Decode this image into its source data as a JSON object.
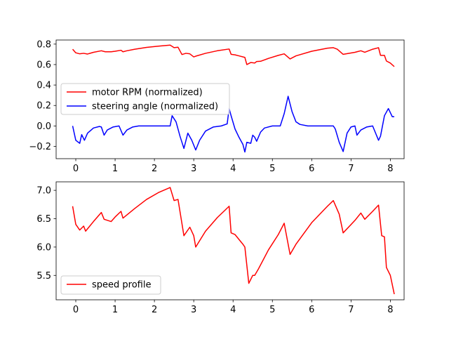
{
  "chart_data": [
    {
      "type": "line",
      "title": "",
      "xlabel": "",
      "ylabel": "",
      "xlim": [
        -0.5,
        8.35
      ],
      "ylim": [
        -0.32,
        0.84
      ],
      "xticks": [
        0,
        1,
        2,
        3,
        4,
        5,
        6,
        7,
        8
      ],
      "yticks": [
        -0.2,
        0.0,
        0.2,
        0.4,
        0.6,
        0.8
      ],
      "ytick_labels": [
        "−0.2",
        "0.0",
        "0.2",
        "0.4",
        "0.6",
        "0.8"
      ],
      "grid": false,
      "legend_position": "center-left",
      "series": [
        {
          "name": "motor RPM (normalized)",
          "color": "#ff0000",
          "x": [
            -0.08,
            0.0,
            0.1,
            0.2,
            0.3,
            0.45,
            0.65,
            0.75,
            0.9,
            1.0,
            1.15,
            1.2,
            1.3,
            1.5,
            1.8,
            2.1,
            2.4,
            2.5,
            2.6,
            2.7,
            2.8,
            2.9,
            3.0,
            3.05,
            3.3,
            3.6,
            3.9,
            3.95,
            4.05,
            4.15,
            4.3,
            4.35,
            4.45,
            4.55,
            4.6,
            4.7,
            4.9,
            5.15,
            5.3,
            5.45,
            5.6,
            6.0,
            6.4,
            6.55,
            6.65,
            6.8,
            7.1,
            7.25,
            7.35,
            7.55,
            7.7,
            7.75,
            7.85,
            7.9,
            8.0,
            8.1
          ],
          "values": [
            0.75,
            0.715,
            0.705,
            0.71,
            0.703,
            0.72,
            0.735,
            0.725,
            0.725,
            0.73,
            0.74,
            0.725,
            0.735,
            0.75,
            0.768,
            0.78,
            0.79,
            0.765,
            0.77,
            0.698,
            0.71,
            0.705,
            0.675,
            0.682,
            0.71,
            0.735,
            0.752,
            0.7,
            0.695,
            0.685,
            0.67,
            0.6,
            0.62,
            0.615,
            0.63,
            0.632,
            0.66,
            0.69,
            0.705,
            0.655,
            0.685,
            0.73,
            0.76,
            0.765,
            0.75,
            0.7,
            0.72,
            0.735,
            0.72,
            0.75,
            0.765,
            0.69,
            0.69,
            0.635,
            0.615,
            0.58
          ]
        },
        {
          "name": "steering angle (normalized)",
          "color": "#0000ff",
          "x": [
            -0.08,
            0.0,
            0.1,
            0.15,
            0.22,
            0.3,
            0.45,
            0.6,
            0.65,
            0.72,
            0.8,
            0.95,
            1.1,
            1.2,
            1.3,
            1.45,
            1.6,
            1.8,
            2.0,
            2.2,
            2.4,
            2.45,
            2.55,
            2.65,
            2.75,
            2.85,
            2.95,
            3.05,
            3.15,
            3.3,
            3.5,
            3.7,
            3.85,
            3.9,
            3.95,
            4.05,
            4.15,
            4.25,
            4.3,
            4.35,
            4.45,
            4.5,
            4.55,
            4.6,
            4.7,
            4.8,
            5.0,
            5.2,
            5.3,
            5.4,
            5.5,
            5.6,
            5.7,
            5.9,
            6.1,
            6.3,
            6.55,
            6.6,
            6.7,
            6.8,
            6.9,
            7.0,
            7.1,
            7.15,
            7.25,
            7.4,
            7.55,
            7.7,
            7.75,
            7.85,
            7.95,
            8.05,
            8.1
          ],
          "values": [
            0.0,
            -0.14,
            -0.17,
            -0.085,
            -0.14,
            -0.07,
            -0.02,
            -0.005,
            -0.01,
            -0.09,
            -0.04,
            -0.01,
            0.0,
            -0.09,
            -0.04,
            -0.01,
            0.0,
            0.0,
            0.0,
            0.0,
            0.0,
            0.1,
            0.04,
            -0.1,
            -0.22,
            -0.07,
            -0.14,
            -0.235,
            -0.14,
            -0.05,
            -0.01,
            0.0,
            0.02,
            0.17,
            0.1,
            -0.03,
            -0.11,
            -0.18,
            -0.255,
            -0.16,
            -0.17,
            -0.09,
            -0.11,
            -0.15,
            -0.06,
            -0.02,
            0.0,
            0.0,
            0.12,
            0.29,
            0.14,
            0.04,
            0.015,
            0.0,
            0.0,
            0.0,
            0.0,
            -0.03,
            -0.16,
            -0.25,
            -0.07,
            -0.01,
            0.0,
            -0.09,
            -0.04,
            -0.01,
            0.0,
            -0.14,
            -0.1,
            0.1,
            0.17,
            0.09,
            0.09
          ]
        }
      ]
    },
    {
      "type": "line",
      "title": "",
      "xlabel": "",
      "ylabel": "",
      "xlim": [
        -0.5,
        8.35
      ],
      "ylim": [
        5.07,
        7.15
      ],
      "xticks": [
        0,
        1,
        2,
        3,
        4,
        5,
        6,
        7,
        8
      ],
      "yticks": [
        5.5,
        6.0,
        6.5,
        7.0
      ],
      "ytick_labels": [
        "5.5",
        "6.0",
        "6.5",
        "7.0"
      ],
      "grid": false,
      "legend_position": "lower-left",
      "series": [
        {
          "name": "speed profile",
          "color": "#ff0000",
          "x": [
            -0.08,
            0.0,
            0.1,
            0.2,
            0.25,
            0.45,
            0.65,
            0.72,
            0.9,
            1.0,
            1.15,
            1.2,
            1.5,
            1.8,
            2.1,
            2.4,
            2.5,
            2.6,
            2.75,
            2.9,
            3.0,
            3.05,
            3.3,
            3.6,
            3.9,
            3.95,
            4.05,
            4.25,
            4.3,
            4.4,
            4.5,
            4.55,
            4.65,
            4.9,
            5.15,
            5.3,
            5.45,
            5.6,
            6.0,
            6.4,
            6.55,
            6.7,
            6.8,
            7.1,
            7.25,
            7.35,
            7.55,
            7.7,
            7.78,
            7.85,
            7.9,
            8.0,
            8.1
          ],
          "values": [
            6.72,
            6.4,
            6.3,
            6.37,
            6.28,
            6.45,
            6.61,
            6.49,
            6.45,
            6.53,
            6.63,
            6.51,
            6.68,
            6.84,
            6.96,
            7.05,
            6.82,
            6.84,
            6.2,
            6.35,
            6.2,
            6.0,
            6.28,
            6.52,
            6.72,
            6.25,
            6.22,
            6.05,
            6.0,
            5.36,
            5.5,
            5.5,
            5.62,
            5.95,
            6.22,
            6.42,
            5.87,
            6.05,
            6.43,
            6.72,
            6.82,
            6.58,
            6.25,
            6.47,
            6.6,
            6.49,
            6.63,
            6.74,
            6.2,
            6.18,
            5.64,
            5.5,
            5.17
          ]
        }
      ]
    }
  ]
}
